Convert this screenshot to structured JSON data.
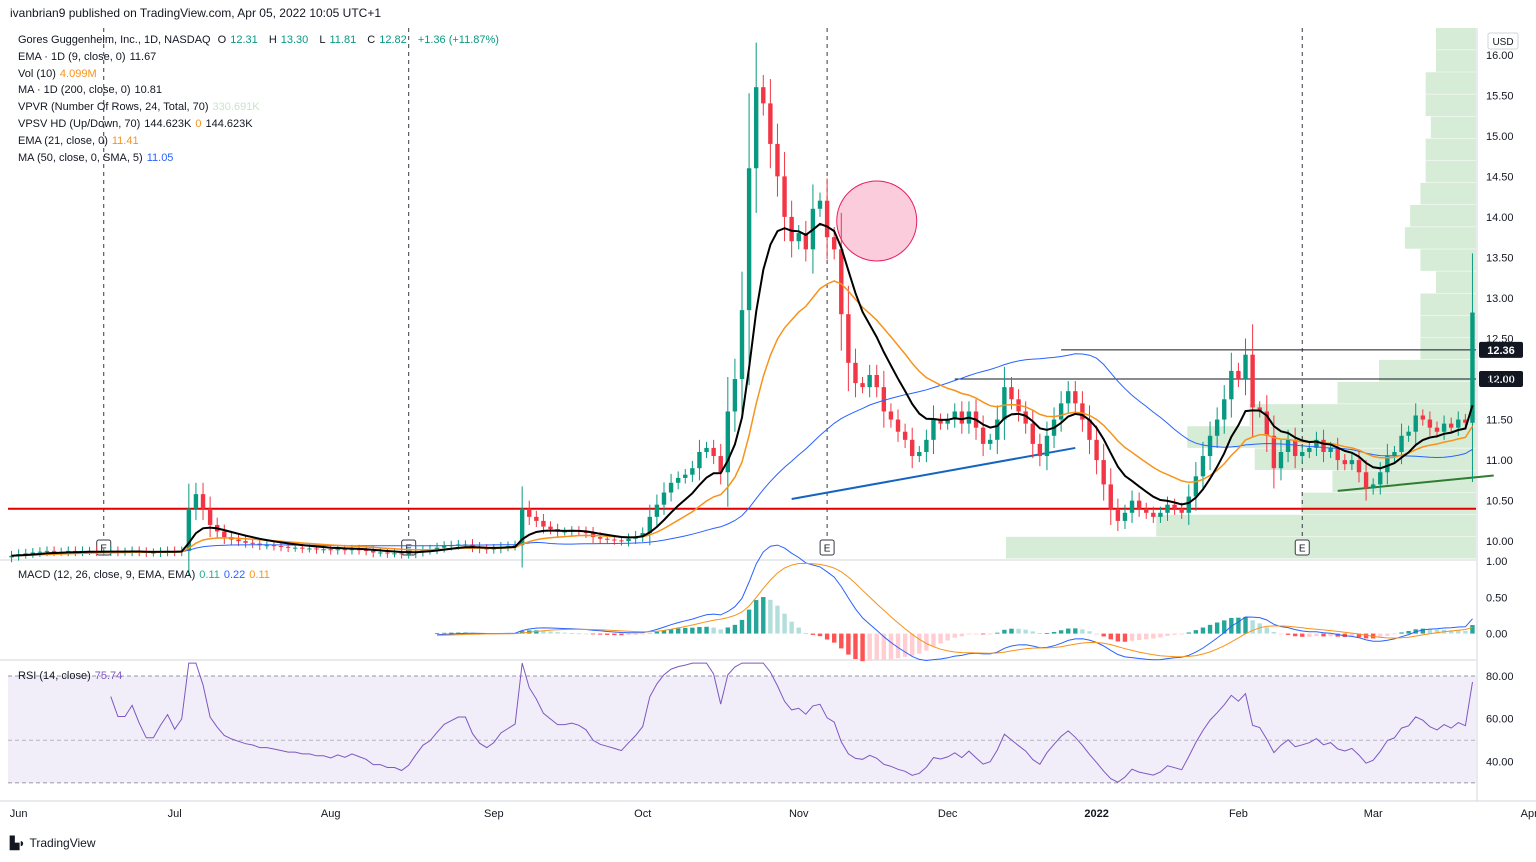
{
  "header": {
    "published": "ivanbrian9 published on TradingView.com, Apr 05, 2022 10:05 UTC+1"
  },
  "legend": {
    "symbol": "Gores Guggenheim, Inc., 1D, NASDAQ",
    "ohlc": {
      "o_label": "O",
      "o": "12.31",
      "h_label": "H",
      "h": "13.30",
      "l_label": "L",
      "l": "11.81",
      "c_label": "C",
      "c": "12.82",
      "chg": "+1.36 (+11.87%)"
    },
    "indicators": [
      {
        "name": "EMA · 1D (9, close, 0)",
        "values": [
          "11.67"
        ],
        "colors": [
          "#131722"
        ]
      },
      {
        "name": "Vol (10)",
        "values": [
          "4.099M"
        ],
        "colors": [
          "#f7931a"
        ]
      },
      {
        "name": "MA · 1D (200, close, 0)",
        "values": [
          "10.81"
        ],
        "colors": [
          "#131722"
        ]
      },
      {
        "name": "VPVR (Number Of Rows, 24, Total, 70)",
        "values": [
          "330.691K"
        ],
        "colors": [
          "#c8e6c9"
        ]
      },
      {
        "name": "VPSV HD (Up/Down, 70)",
        "values": [
          "144.623K",
          "0",
          "144.623K"
        ],
        "colors": [
          "#131722",
          "#f7931a",
          "#131722"
        ]
      },
      {
        "name": "EMA (21, close, 0)",
        "values": [
          "11.41"
        ],
        "colors": [
          "#f7931a"
        ]
      },
      {
        "name": "MA (50, close, 0, SMA, 5)",
        "values": [
          "11.05"
        ],
        "colors": [
          "#2962ff"
        ]
      }
    ],
    "macd": {
      "name": "MACD (12, 26, close, 9, EMA, EMA)",
      "values": [
        "0.11",
        "0.22",
        "0.11"
      ],
      "colors": [
        "#22ab94",
        "#2962ff",
        "#f7931a"
      ]
    },
    "rsi": {
      "name": "RSI (14, close)",
      "values": [
        "75.74"
      ],
      "colors": [
        "#7e57c2"
      ]
    }
  },
  "colors": {
    "up": "#089981",
    "down": "#f23645",
    "ema9": "#000000",
    "ema21": "#f7931a",
    "ma50": "#2962ff",
    "support": "#e00000",
    "trend_blue": "#1565c0",
    "trend_green": "#2e7d32",
    "vp": "#c8e6c9",
    "rsi": "#7e57c2"
  },
  "currency": "USD",
  "earnings_marker": "E",
  "brand": "TradingView",
  "chart_data": {
    "type": "candlestick",
    "price_axis": {
      "ticks": [
        "16.00",
        "15.50",
        "15.00",
        "14.50",
        "14.00",
        "13.50",
        "13.00",
        "12.50",
        "12.00",
        "11.50",
        "11.00",
        "10.50",
        "10.00"
      ],
      "range": [
        9.78,
        16.33
      ]
    },
    "x_axis": {
      "labels": [
        "Jun",
        "Jul",
        "Aug",
        "Sep",
        "Oct",
        "Nov",
        "Dec",
        "2022",
        "Feb",
        "Mar",
        "Apr"
      ]
    },
    "earnings_dates": [
      "2021-06-17",
      "2021-08-17",
      "2021-11-15",
      "2022-02-24"
    ],
    "levels": [
      {
        "price": 12.36,
        "label": "12.36"
      },
      {
        "price": 12.0,
        "label": "12.00"
      },
      {
        "price": 10.4,
        "label": ""
      }
    ],
    "closes": [
      9.82,
      9.84,
      9.85,
      9.86,
      9.87,
      9.88,
      9.87,
      9.87,
      9.88,
      9.87,
      9.88,
      9.88,
      9.87,
      9.87,
      9.88,
      9.87,
      9.87,
      9.88,
      9.87,
      9.86,
      9.86,
      9.87,
      9.88,
      9.87,
      9.88,
      10.4,
      10.58,
      10.4,
      10.2,
      10.12,
      10.05,
      10.02,
      10.0,
      9.98,
      9.97,
      9.95,
      9.95,
      9.94,
      9.93,
      9.92,
      9.92,
      9.91,
      9.91,
      9.9,
      9.9,
      9.89,
      9.9,
      9.89,
      9.9,
      9.89,
      9.88,
      9.86,
      9.86,
      9.85,
      9.85,
      9.84,
      9.85,
      9.87,
      9.89,
      9.9,
      9.92,
      9.94,
      9.95,
      9.96,
      9.96,
      9.93,
      9.91,
      9.9,
      9.91,
      9.93,
      9.94,
      9.95,
      10.4,
      10.3,
      10.25,
      10.18,
      10.15,
      10.12,
      10.12,
      10.13,
      10.12,
      10.1,
      10.05,
      10.03,
      10.02,
      10.01,
      10.0,
      10.03,
      10.06,
      10.1,
      10.3,
      10.45,
      10.6,
      10.72,
      10.78,
      10.82,
      10.9,
      11.1,
      11.15,
      11.05,
      10.85,
      11.6,
      12.0,
      12.85,
      14.6,
      15.6,
      15.4,
      14.9,
      14.5,
      14.0,
      13.7,
      13.8,
      13.6,
      14.1,
      14.2,
      13.75,
      13.6,
      12.8,
      12.2,
      11.95,
      11.9,
      12.05,
      11.9,
      11.6,
      11.5,
      11.35,
      11.25,
      11.05,
      11.1,
      11.25,
      11.5,
      11.45,
      11.5,
      11.6,
      11.45,
      11.6,
      11.4,
      11.2,
      11.25,
      11.5,
      11.9,
      11.75,
      11.6,
      11.45,
      11.2,
      11.05,
      11.3,
      11.5,
      11.7,
      11.85,
      11.7,
      11.5,
      11.25,
      11.0,
      10.7,
      10.4,
      10.25,
      10.35,
      10.5,
      10.4,
      10.35,
      10.3,
      10.35,
      10.45,
      10.4,
      10.35,
      10.55,
      10.8,
      11.05,
      11.3,
      11.5,
      11.75,
      12.1,
      12.0,
      12.3,
      11.65,
      11.6,
      11.3,
      10.9,
      11.1,
      11.25,
      11.05,
      11.1,
      11.15,
      11.25,
      11.1,
      11.15,
      11.0,
      10.95,
      11.0,
      10.85,
      10.65,
      10.7,
      10.85,
      11.05,
      11.1,
      11.3,
      11.35,
      11.55,
      11.5,
      11.4,
      11.35,
      11.45,
      11.4,
      11.5,
      11.46,
      12.82
    ],
    "macd_axis": {
      "ticks": [
        "1.00",
        "0.50",
        "0.00"
      ],
      "range": [
        -0.35,
        1.0
      ]
    },
    "rsi_axis": {
      "ticks": [
        "80.00",
        "60.00",
        "40.00"
      ],
      "range": [
        22,
        87
      ],
      "bands": [
        30,
        80
      ]
    }
  }
}
